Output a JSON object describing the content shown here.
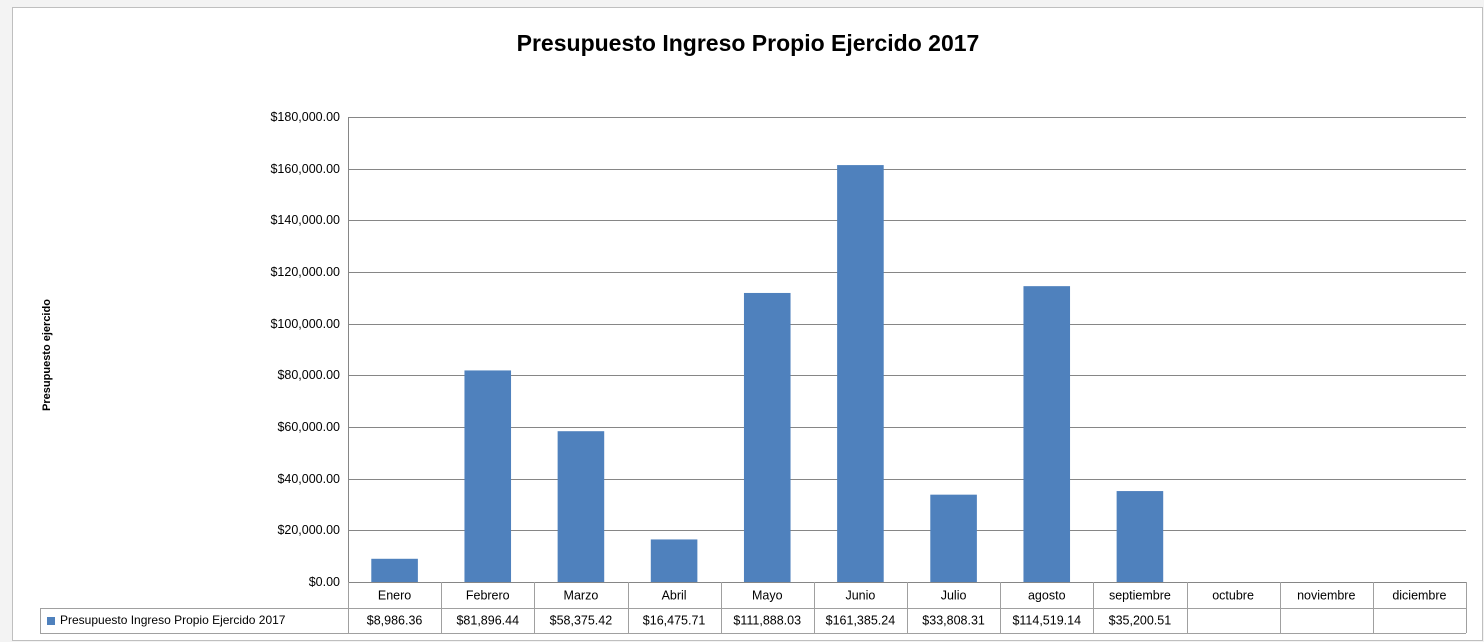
{
  "chart_data": {
    "type": "bar",
    "title": "Presupuesto Ingreso Propio Ejercido 2017",
    "y_label": "Presupuesto ejercido",
    "categories": [
      "Enero",
      "Febrero",
      "Marzo",
      "Abril",
      "Mayo",
      "Junio",
      "Julio",
      "agosto",
      "septiembre",
      "octubre",
      "noviembre",
      "diciembre"
    ],
    "series": [
      {
        "name": "Presupuesto Ingreso Propio Ejercido 2017",
        "color": "#4f81bd",
        "values": [
          8986.36,
          81896.44,
          58375.42,
          16475.71,
          111888.03,
          161385.24,
          33808.31,
          114519.14,
          35200.51,
          null,
          null,
          null
        ],
        "value_labels": [
          "$8,986.36",
          "$81,896.44",
          "$58,375.42",
          "$16,475.71",
          "$111,888.03",
          "$161,385.24",
          "$33,808.31",
          "$114,519.14",
          "$35,200.51",
          null,
          null,
          null
        ]
      }
    ],
    "ylim": [
      0,
      180000
    ],
    "yticks": [
      {
        "value": 0,
        "label": "$0.00"
      },
      {
        "value": 20000,
        "label": "$20,000.00"
      },
      {
        "value": 40000,
        "label": "$40,000.00"
      },
      {
        "value": 60000,
        "label": "$60,000.00"
      },
      {
        "value": 80000,
        "label": "$80,000.00"
      },
      {
        "value": 100000,
        "label": "$100,000.00"
      },
      {
        "value": 120000,
        "label": "$120,000.00"
      },
      {
        "value": 140000,
        "label": "$140,000.00"
      },
      {
        "value": 160000,
        "label": "$160,000.00"
      },
      {
        "value": 180000,
        "label": "$180,000.00"
      }
    ],
    "grid": true,
    "data_table": true
  }
}
